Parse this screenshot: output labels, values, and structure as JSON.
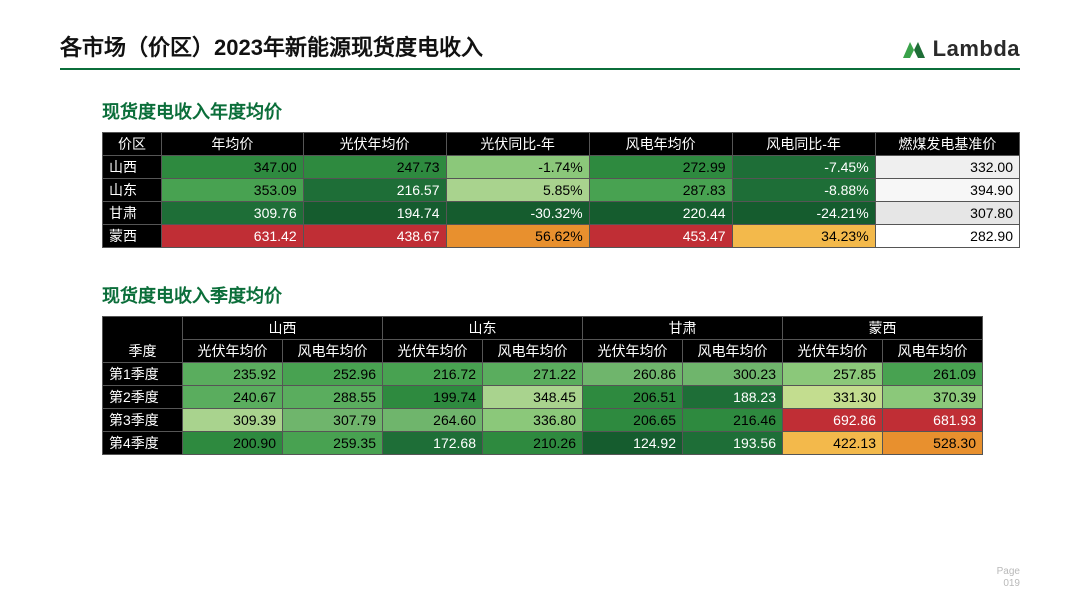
{
  "page_title": "各市场（价区）2023年新能源现货度电收入",
  "logo_text": "Lambda",
  "section1_title": "现货度电收入年度均价",
  "section2_title": "现货度电收入季度均价",
  "footer_label": "Page",
  "footer_page": "019",
  "colors": {
    "header_bg": "#000000",
    "header_fg": "#ffffff",
    "border": "#555555",
    "accent": "#0b6e3a"
  },
  "table1": {
    "columns": [
      "价区",
      "年均价",
      "光伏年均价",
      "光伏同比-年",
      "风电年均价",
      "风电同比-年",
      "燃煤发电基准价"
    ],
    "rows": [
      {
        "label": "山西",
        "cells": [
          {
            "v": "347.00",
            "bg": "#2e8a3f",
            "fg": "#000"
          },
          {
            "v": "247.73",
            "bg": "#2e8a3f",
            "fg": "#000"
          },
          {
            "v": "-1.74%",
            "bg": "#8bc87a",
            "fg": "#000"
          },
          {
            "v": "272.99",
            "bg": "#2e8a3f",
            "fg": "#000"
          },
          {
            "v": "-7.45%",
            "bg": "#1e6e37",
            "fg": "#fff"
          },
          {
            "v": "332.00",
            "bg": "#efefef",
            "fg": "#000"
          }
        ]
      },
      {
        "label": "山东",
        "cells": [
          {
            "v": "353.09",
            "bg": "#48a251",
            "fg": "#000"
          },
          {
            "v": "216.57",
            "bg": "#1e6e37",
            "fg": "#fff"
          },
          {
            "v": "5.85%",
            "bg": "#a9d38e",
            "fg": "#000"
          },
          {
            "v": "287.83",
            "bg": "#48a251",
            "fg": "#000"
          },
          {
            "v": "-8.88%",
            "bg": "#1e6e37",
            "fg": "#fff"
          },
          {
            "v": "394.90",
            "bg": "#f7f7f7",
            "fg": "#000"
          }
        ]
      },
      {
        "label": "甘肃",
        "cells": [
          {
            "v": "309.76",
            "bg": "#1e6e37",
            "fg": "#fff"
          },
          {
            "v": "194.74",
            "bg": "#155c2e",
            "fg": "#fff"
          },
          {
            "v": "-30.32%",
            "bg": "#155c2e",
            "fg": "#fff"
          },
          {
            "v": "220.44",
            "bg": "#155c2e",
            "fg": "#fff"
          },
          {
            "v": "-24.21%",
            "bg": "#155c2e",
            "fg": "#fff"
          },
          {
            "v": "307.80",
            "bg": "#e6e6e6",
            "fg": "#000"
          }
        ]
      },
      {
        "label": "蒙西",
        "cells": [
          {
            "v": "631.42",
            "bg": "#c02e35",
            "fg": "#fff"
          },
          {
            "v": "438.67",
            "bg": "#c02e35",
            "fg": "#fff"
          },
          {
            "v": "56.62%",
            "bg": "#e8902e",
            "fg": "#000"
          },
          {
            "v": "453.47",
            "bg": "#c02e35",
            "fg": "#fff"
          },
          {
            "v": "34.23%",
            "bg": "#f3b94b",
            "fg": "#000"
          },
          {
            "v": "282.90",
            "bg": "#ffffff",
            "fg": "#000"
          }
        ]
      }
    ]
  },
  "table2": {
    "quarter_header": "季度",
    "top_headers": [
      "山西",
      "山东",
      "甘肃",
      "蒙西"
    ],
    "sub_headers": [
      "光伏年均价",
      "风电年均价"
    ],
    "rows": [
      {
        "label": "第1季度",
        "cells": [
          {
            "v": "235.92",
            "bg": "#5aad5e"
          },
          {
            "v": "252.96",
            "bg": "#48a251"
          },
          {
            "v": "216.72",
            "bg": "#48a251"
          },
          {
            "v": "271.22",
            "bg": "#5aad5e"
          },
          {
            "v": "260.86",
            "bg": "#6fb56c"
          },
          {
            "v": "300.23",
            "bg": "#6fb56c"
          },
          {
            "v": "257.85",
            "bg": "#8bc87a"
          },
          {
            "v": "261.09",
            "bg": "#48a251"
          }
        ]
      },
      {
        "label": "第2季度",
        "cells": [
          {
            "v": "240.67",
            "bg": "#5aad5e"
          },
          {
            "v": "288.55",
            "bg": "#5aad5e"
          },
          {
            "v": "199.74",
            "bg": "#2e8a3f"
          },
          {
            "v": "348.45",
            "bg": "#a9d38e"
          },
          {
            "v": "206.51",
            "bg": "#2e8a3f"
          },
          {
            "v": "188.23",
            "bg": "#1e6e37",
            "fg": "#fff"
          },
          {
            "v": "331.30",
            "bg": "#c3dd8f"
          },
          {
            "v": "370.39",
            "bg": "#8bc87a"
          }
        ]
      },
      {
        "label": "第3季度",
        "cells": [
          {
            "v": "309.39",
            "bg": "#a9d38e"
          },
          {
            "v": "307.79",
            "bg": "#6fb56c"
          },
          {
            "v": "264.60",
            "bg": "#6fb56c"
          },
          {
            "v": "336.80",
            "bg": "#8bc87a"
          },
          {
            "v": "206.65",
            "bg": "#2e8a3f"
          },
          {
            "v": "216.46",
            "bg": "#2e8a3f"
          },
          {
            "v": "692.86",
            "bg": "#c02e35",
            "fg": "#fff"
          },
          {
            "v": "681.93",
            "bg": "#c02e35",
            "fg": "#fff"
          }
        ]
      },
      {
        "label": "第4季度",
        "cells": [
          {
            "v": "200.90",
            "bg": "#2e8a3f"
          },
          {
            "v": "259.35",
            "bg": "#48a251"
          },
          {
            "v": "172.68",
            "bg": "#1e6e37",
            "fg": "#fff"
          },
          {
            "v": "210.26",
            "bg": "#2e8a3f"
          },
          {
            "v": "124.92",
            "bg": "#155c2e",
            "fg": "#fff"
          },
          {
            "v": "193.56",
            "bg": "#1e6e37",
            "fg": "#fff"
          },
          {
            "v": "422.13",
            "bg": "#f3b94b"
          },
          {
            "v": "528.30",
            "bg": "#e8902e"
          }
        ]
      }
    ]
  }
}
